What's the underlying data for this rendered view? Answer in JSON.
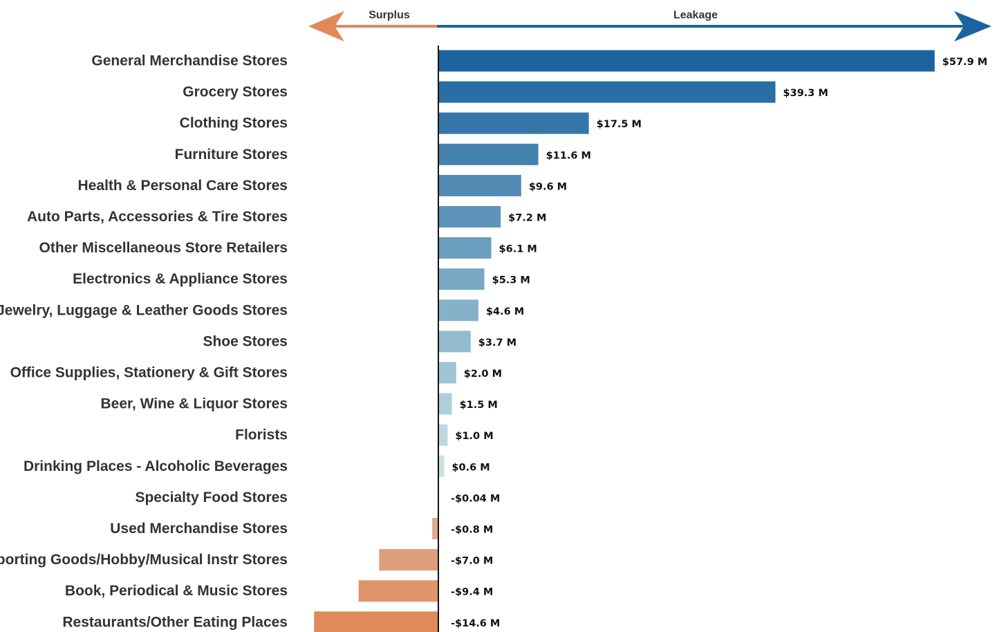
{
  "chart_data": {
    "type": "bar",
    "orientation": "horizontal",
    "direction_labels": {
      "negative": "Surplus",
      "positive": "Leakage"
    },
    "categories": [
      "General Merchandise Stores",
      "Grocery Stores",
      "Clothing Stores",
      "Furniture Stores",
      "Health & Personal Care Stores",
      "Auto Parts, Accessories & Tire Stores",
      "Other Miscellaneous Store Retailers",
      "Electronics & Appliance Stores",
      "Jewelry, Luggage & Leather Goods Stores",
      "Shoe Stores",
      "Office Supplies, Stationery & Gift Stores",
      "Beer, Wine & Liquor Stores",
      "Florists",
      "Drinking Places - Alcoholic Beverages",
      "Specialty Food Stores",
      "Used Merchandise Stores",
      "Sporting Goods/Hobby/Musical Instr Stores",
      "Book, Periodical & Music Stores",
      "Restaurants/Other Eating Places"
    ],
    "values": [
      57.9,
      39.3,
      17.5,
      11.6,
      9.6,
      7.2,
      6.1,
      5.3,
      4.6,
      3.7,
      2.0,
      1.5,
      1.0,
      0.6,
      -0.04,
      -0.8,
      -7.0,
      -9.4,
      -14.6
    ],
    "value_labels": [
      "$57.9 M",
      "$39.3 M",
      "$17.5 M",
      "$11.6 M",
      "$9.6 M",
      "$7.2 M",
      "$6.1 M",
      "$5.3 M",
      "$4.6 M",
      "$3.7 M",
      "$2.0 M",
      "$1.5 M",
      "$1.0 M",
      "$0.6 M",
      "-$0.04 M",
      "-$0.8 M",
      "-$7.0 M",
      "-$9.4 M",
      "-$14.6 M"
    ],
    "unit": "$ M",
    "xlim": [
      -15,
      58
    ],
    "grid": false,
    "legend": "none",
    "colors": {
      "positive_max": "#1c64a0",
      "positive_min": "#c7e2e2",
      "negative_min": "#dcb3a0",
      "negative_max": "#e0895a",
      "surplus_arrow": "#e0895a",
      "leakage_arrow": "#1c64a0",
      "axis": "#111111"
    }
  }
}
